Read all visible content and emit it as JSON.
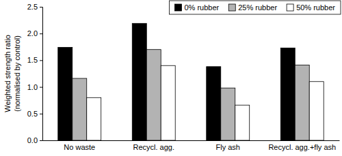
{
  "chart_data": {
    "type": "bar",
    "ylabel": [
      "Weighted strength ratio",
      "(normalised by control)"
    ],
    "categories": [
      "No waste",
      "Recycl. agg.",
      "Fly ash",
      "Recycl. agg.+fly ash"
    ],
    "series": [
      {
        "name": "0% rubber",
        "color": "#000000",
        "values": [
          1.74,
          2.19,
          1.38,
          1.73
        ]
      },
      {
        "name": "25% rubber",
        "color": "#b3b3b3",
        "values": [
          1.16,
          1.7,
          0.98,
          1.41
        ]
      },
      {
        "name": "50% rubber",
        "color": "#ffffff",
        "values": [
          0.8,
          1.4,
          0.66,
          1.1
        ]
      }
    ],
    "ylim": [
      0,
      2.5
    ],
    "yticks": [
      {
        "value": 0,
        "label": "0.0"
      },
      {
        "value": 0.5,
        "label": "0.5"
      },
      {
        "value": 1,
        "label": "1.0"
      },
      {
        "value": 1.5,
        "label": "1.5"
      },
      {
        "value": 2,
        "label": "2.0"
      },
      {
        "value": 2.5,
        "label": "2.5"
      }
    ],
    "grid": false,
    "legend": "top-right"
  }
}
